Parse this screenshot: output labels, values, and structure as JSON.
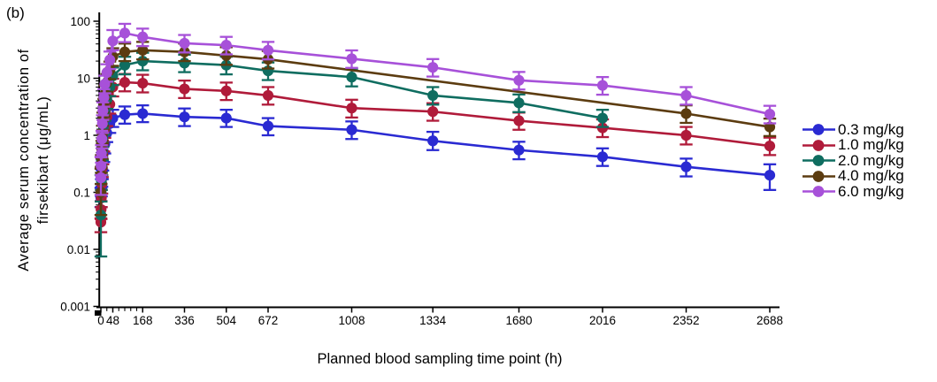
{
  "panel_label": "(b)",
  "chart_data": {
    "type": "line",
    "title": "",
    "xlabel": "Planned blood sampling time point (h)",
    "ylabel": "Average serum concentration of firsekibart (μg/mL)",
    "ylabel_lines": [
      "Average serum concentration of",
      "firsekibart (μg/mL)"
    ],
    "x_scale": "linear",
    "y_scale": "log",
    "xlim": [
      0,
      2688
    ],
    "ylim": [
      0.001,
      100
    ],
    "grid": false,
    "legend_position": "right",
    "x_ticks": [
      0,
      48,
      168,
      336,
      504,
      672,
      1008,
      1334,
      1680,
      2016,
      2352,
      2688
    ],
    "x_minor_ticks": [
      24,
      72,
      96,
      120,
      144
    ],
    "y_ticks": [
      100,
      10,
      1,
      0.1,
      0.01,
      0.001
    ],
    "y_tick_labels": [
      "100",
      "10",
      "1",
      "0.1",
      "0.01",
      "0.001"
    ],
    "x": [
      0,
      1,
      2,
      4,
      6,
      8,
      12,
      16,
      24,
      36,
      48,
      96,
      168,
      336,
      504,
      672,
      1008,
      1334,
      1680,
      2016,
      2352,
      2688
    ],
    "series": [
      {
        "name": "0.3 mg/kg",
        "color": "#2a2ad2",
        "values": [
          0.08,
          0.1,
          0.12,
          0.18,
          0.25,
          0.35,
          0.5,
          0.7,
          1.1,
          1.6,
          2.0,
          2.3,
          2.4,
          2.1,
          2.0,
          1.45,
          1.25,
          0.8,
          0.55,
          0.42,
          0.28,
          0.2
        ],
        "lo": [
          0.055,
          0.07,
          0.085,
          0.125,
          0.17,
          0.24,
          0.34,
          0.48,
          0.76,
          1.1,
          1.4,
          1.6,
          1.7,
          1.45,
          1.4,
          1.0,
          0.86,
          0.55,
          0.38,
          0.29,
          0.19,
          0.11
        ],
        "hi": [
          0.12,
          0.14,
          0.17,
          0.25,
          0.35,
          0.49,
          0.7,
          0.98,
          1.55,
          2.25,
          2.8,
          3.2,
          3.35,
          2.95,
          2.8,
          2.0,
          1.75,
          1.15,
          0.77,
          0.59,
          0.39,
          0.31
        ]
      },
      {
        "name": "1.0 mg/kg",
        "color": "#b01b3a",
        "values": [
          0.03,
          0.05,
          0.08,
          0.14,
          0.27,
          0.45,
          0.76,
          1.3,
          2.1,
          3.5,
          7.0,
          8.5,
          8.2,
          6.5,
          6.0,
          5.0,
          3.0,
          2.6,
          1.8,
          1.35,
          1.0,
          0.65
        ],
        "lo": [
          0.02,
          0.034,
          0.055,
          0.095,
          0.185,
          0.31,
          0.52,
          0.9,
          1.45,
          2.4,
          4.8,
          5.9,
          5.65,
          4.5,
          4.15,
          3.45,
          2.05,
          1.8,
          1.25,
          0.93,
          0.69,
          0.45
        ],
        "hi": [
          0.035,
          0.07,
          0.11,
          0.2,
          0.38,
          0.63,
          1.05,
          1.8,
          2.95,
          4.9,
          9.8,
          11.9,
          11.5,
          9.1,
          8.4,
          7.0,
          4.2,
          3.65,
          2.5,
          1.9,
          1.4,
          0.91
        ]
      },
      {
        "name": "2.0 mg/kg",
        "color": "#0f6d60",
        "values": [
          0.04,
          0.1,
          0.16,
          0.29,
          0.53,
          0.9,
          1.5,
          2.6,
          4.2,
          7.0,
          11.0,
          17.0,
          20.0,
          18.5,
          17.0,
          13.5,
          10.5,
          5.0,
          3.7,
          2.0,
          null,
          null
        ],
        "lo": [
          0.0075,
          0.069,
          0.11,
          0.2,
          0.365,
          0.62,
          1.03,
          1.8,
          2.9,
          4.85,
          7.6,
          11.7,
          13.8,
          12.8,
          11.7,
          9.3,
          7.2,
          3.45,
          2.55,
          1.4,
          null,
          null
        ],
        "hi": [
          0.2,
          0.14,
          0.22,
          0.41,
          0.74,
          1.26,
          2.1,
          3.65,
          5.9,
          9.8,
          15.4,
          23.8,
          28.0,
          25.9,
          23.8,
          18.9,
          14.7,
          7.0,
          5.2,
          2.8,
          null,
          null
        ]
      },
      {
        "name": "4.0 mg/kg",
        "color": "#5c3c10",
        "values": [
          0.1,
          0.2,
          0.32,
          0.57,
          1.05,
          1.8,
          3.1,
          5.3,
          8.4,
          14.0,
          24.0,
          29.0,
          31.0,
          29.0,
          25.0,
          21.5,
          null,
          null,
          null,
          null,
          2.4,
          1.4
        ],
        "lo": [
          0.04,
          0.14,
          0.22,
          0.39,
          0.72,
          1.24,
          2.14,
          3.65,
          5.8,
          9.65,
          16.5,
          20.0,
          21.4,
          20.0,
          17.2,
          14.8,
          null,
          null,
          null,
          null,
          1.65,
          0.97
        ],
        "hi": [
          0.26,
          0.28,
          0.45,
          0.8,
          1.47,
          2.5,
          4.35,
          7.4,
          11.8,
          19.6,
          33.6,
          40.6,
          43.4,
          40.6,
          35.0,
          30.1,
          null,
          null,
          null,
          null,
          3.35,
          1.96
        ]
      },
      {
        "name": "6.0 mg/kg",
        "color": "#a751d9",
        "values": [
          0.18,
          0.29,
          0.48,
          0.86,
          1.6,
          2.7,
          4.6,
          7.9,
          12.6,
          21.0,
          45.0,
          62.0,
          53.0,
          41.0,
          38.0,
          31.0,
          22.0,
          15.5,
          9.2,
          7.5,
          5.0,
          2.35
        ],
        "lo": [
          0.09,
          0.2,
          0.33,
          0.59,
          1.1,
          1.86,
          3.17,
          5.45,
          8.7,
          14.5,
          31.0,
          43.0,
          36.6,
          28.3,
          26.2,
          21.4,
          15.2,
          10.7,
          6.35,
          5.15,
          3.45,
          1.62
        ],
        "hi": [
          0.42,
          0.41,
          0.67,
          1.2,
          2.24,
          3.78,
          6.44,
          11.1,
          17.6,
          29.4,
          70.0,
          90.0,
          74.2,
          57.4,
          53.2,
          43.4,
          30.8,
          21.7,
          12.9,
          10.5,
          7.0,
          3.29
        ]
      }
    ]
  }
}
